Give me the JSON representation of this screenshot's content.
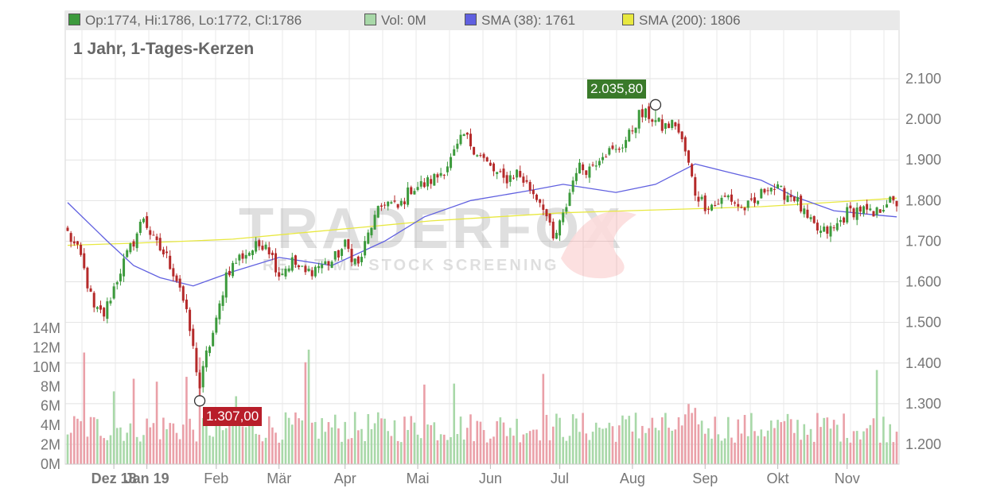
{
  "legend": {
    "ohlc": "Op:1774, Hi:1786, Lo:1772, Cl:1786",
    "volume": "Vol: 0M",
    "sma38": "SMA (38): 1761",
    "sma200": "SMA (200): 1806"
  },
  "subtitle": "1 Jahr, 1-Tages-Kerzen",
  "watermark": "TRADERFOX",
  "watermark_sub": "REALTIME STOCK SCREENING",
  "high_marker": "2.035,80",
  "low_marker": "1.307,00",
  "colors": {
    "up": "#3c9a3c",
    "down": "#b52a2a",
    "vol_up": "#a8d8a8",
    "vol_down": "#eaa0a8",
    "sma38": "#6060e0",
    "sma200": "#e8e840",
    "high_badge": "#3a7a2a",
    "low_badge": "#b81e2a"
  },
  "chart_data": {
    "type": "candlestick",
    "title": "",
    "x_tick_labels": [
      "Dez 18",
      "Jan 19",
      "Feb",
      "Mär",
      "Apr",
      "Mai",
      "Jun",
      "Jul",
      "Aug",
      "Sep",
      "Okt",
      "Nov"
    ],
    "price_axis": {
      "ticks": [
        "1.200",
        "1.300",
        "1.400",
        "1.500",
        "1.600",
        "1.700",
        "1.800",
        "1.900",
        "2.000",
        "2.100"
      ],
      "range": [
        1150,
        2180
      ]
    },
    "volume_axis": {
      "ticks": [
        "0M",
        "2M",
        "4M",
        "6M",
        "8M",
        "10M",
        "12M",
        "14M"
      ],
      "range": [
        0,
        14
      ]
    },
    "anchors": [
      {
        "i": 0,
        "c": 1720
      },
      {
        "i": 4,
        "c": 1660
      },
      {
        "i": 8,
        "c": 1530
      },
      {
        "i": 11,
        "c": 1520
      },
      {
        "i": 16,
        "c": 1630
      },
      {
        "i": 20,
        "c": 1700
      },
      {
        "i": 23,
        "c": 1760
      },
      {
        "i": 26,
        "c": 1700
      },
      {
        "i": 30,
        "c": 1660
      },
      {
        "i": 34,
        "c": 1590
      },
      {
        "i": 37,
        "c": 1480
      },
      {
        "i": 40,
        "c": 1340
      },
      {
        "i": 42,
        "c": 1420
      },
      {
        "i": 45,
        "c": 1500
      },
      {
        "i": 48,
        "c": 1620
      },
      {
        "i": 52,
        "c": 1660
      },
      {
        "i": 56,
        "c": 1680
      },
      {
        "i": 60,
        "c": 1700
      },
      {
        "i": 64,
        "c": 1620
      },
      {
        "i": 68,
        "c": 1650
      },
      {
        "i": 72,
        "c": 1620
      },
      {
        "i": 76,
        "c": 1640
      },
      {
        "i": 80,
        "c": 1650
      },
      {
        "i": 84,
        "c": 1690
      },
      {
        "i": 88,
        "c": 1640
      },
      {
        "i": 92,
        "c": 1740
      },
      {
        "i": 96,
        "c": 1800
      },
      {
        "i": 100,
        "c": 1780
      },
      {
        "i": 104,
        "c": 1830
      },
      {
        "i": 108,
        "c": 1840
      },
      {
        "i": 112,
        "c": 1860
      },
      {
        "i": 116,
        "c": 1900
      },
      {
        "i": 120,
        "c": 1960
      },
      {
        "i": 124,
        "c": 1920
      },
      {
        "i": 128,
        "c": 1880
      },
      {
        "i": 132,
        "c": 1850
      },
      {
        "i": 136,
        "c": 1870
      },
      {
        "i": 140,
        "c": 1830
      },
      {
        "i": 144,
        "c": 1790
      },
      {
        "i": 147,
        "c": 1700
      },
      {
        "i": 150,
        "c": 1760
      },
      {
        "i": 154,
        "c": 1880
      },
      {
        "i": 158,
        "c": 1880
      },
      {
        "i": 162,
        "c": 1920
      },
      {
        "i": 166,
        "c": 1920
      },
      {
        "i": 170,
        "c": 1960
      },
      {
        "i": 173,
        "c": 2010
      },
      {
        "i": 176,
        "c": 2010
      },
      {
        "i": 180,
        "c": 1980
      },
      {
        "i": 184,
        "c": 1990
      },
      {
        "i": 187,
        "c": 1920
      },
      {
        "i": 190,
        "c": 1820
      },
      {
        "i": 193,
        "c": 1790
      },
      {
        "i": 196,
        "c": 1790
      },
      {
        "i": 200,
        "c": 1810
      },
      {
        "i": 204,
        "c": 1780
      },
      {
        "i": 208,
        "c": 1790
      },
      {
        "i": 212,
        "c": 1840
      },
      {
        "i": 216,
        "c": 1820
      },
      {
        "i": 220,
        "c": 1810
      },
      {
        "i": 224,
        "c": 1750
      },
      {
        "i": 228,
        "c": 1720
      },
      {
        "i": 232,
        "c": 1730
      },
      {
        "i": 236,
        "c": 1770
      },
      {
        "i": 240,
        "c": 1780
      },
      {
        "i": 244,
        "c": 1760
      },
      {
        "i": 248,
        "c": 1800
      },
      {
        "i": 251,
        "c": 1786
      }
    ],
    "high_point": {
      "i": 178,
      "value": 2035.8
    },
    "low_point": {
      "i": 40,
      "value": 1307.0
    },
    "sma38_points": [
      [
        0,
        1795
      ],
      [
        12,
        1700
      ],
      [
        20,
        1640
      ],
      [
        28,
        1610
      ],
      [
        38,
        1590
      ],
      [
        50,
        1625
      ],
      [
        64,
        1660
      ],
      [
        80,
        1640
      ],
      [
        96,
        1700
      ],
      [
        108,
        1760
      ],
      [
        122,
        1800
      ],
      [
        140,
        1825
      ],
      [
        150,
        1840
      ],
      [
        166,
        1820
      ],
      [
        178,
        1840
      ],
      [
        190,
        1890
      ],
      [
        200,
        1870
      ],
      [
        210,
        1850
      ],
      [
        220,
        1810
      ],
      [
        232,
        1775
      ],
      [
        244,
        1765
      ],
      [
        251,
        1760
      ]
    ],
    "sma200_points": [
      [
        0,
        1690
      ],
      [
        20,
        1695
      ],
      [
        36,
        1700
      ],
      [
        50,
        1705
      ],
      [
        70,
        1720
      ],
      [
        90,
        1735
      ],
      [
        110,
        1750
      ],
      [
        130,
        1760
      ],
      [
        150,
        1770
      ],
      [
        170,
        1775
      ],
      [
        190,
        1780
      ],
      [
        210,
        1785
      ],
      [
        230,
        1795
      ],
      [
        251,
        1806
      ]
    ],
    "volume_spikes": [
      {
        "i": 5,
        "v": 11.5
      },
      {
        "i": 14,
        "v": 7.5
      },
      {
        "i": 20,
        "v": 8.8
      },
      {
        "i": 27,
        "v": 8.5
      },
      {
        "i": 36,
        "v": 9.0
      },
      {
        "i": 40,
        "v": 11.0
      },
      {
        "i": 51,
        "v": 7.0
      },
      {
        "i": 72,
        "v": 10.5
      },
      {
        "i": 73,
        "v": 11.8
      },
      {
        "i": 108,
        "v": 8.2
      },
      {
        "i": 117,
        "v": 8.3
      },
      {
        "i": 144,
        "v": 9.3
      },
      {
        "i": 172,
        "v": 5.3
      },
      {
        "i": 188,
        "v": 6.2
      },
      {
        "i": 190,
        "v": 5.8
      },
      {
        "i": 245,
        "v": 9.7
      }
    ]
  }
}
